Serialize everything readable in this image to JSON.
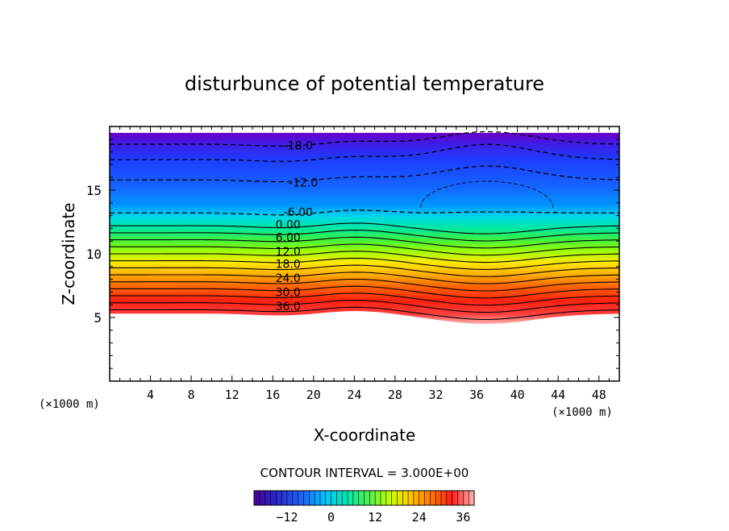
{
  "chart_data": {
    "type": "contour",
    "title": "disturbunce of potential temperature",
    "xlabel": "X-coordinate",
    "ylabel": "Z-coordinate",
    "x_unit_label": "(×1000 m)",
    "y_unit_label": "(×1000 m)",
    "xlim": [
      0,
      50
    ],
    "ylim": [
      0,
      20
    ],
    "x_ticks": [
      4,
      8,
      12,
      16,
      20,
      24,
      28,
      32,
      36,
      40,
      44,
      48
    ],
    "y_ticks": [
      5,
      10,
      15
    ],
    "contour_interval_text": "CONTOUR INTERVAL = 3.000E+00",
    "colorbar_ticks": [
      "-12",
      "0",
      "12",
      "24",
      "36"
    ],
    "colorbar_range": [
      -21,
      39
    ],
    "contour_labels": [
      {
        "text": "-18.0",
        "x": 18.5,
        "z": 18.5
      },
      {
        "text": "-12.0",
        "x": 19.0,
        "z": 15.6
      },
      {
        "text": "-6.00",
        "x": 18.5,
        "z": 13.3
      },
      {
        "text": "0.00",
        "x": 17.5,
        "z": 12.3
      },
      {
        "text": "6.00",
        "x": 17.5,
        "z": 11.3
      },
      {
        "text": "12.0",
        "x": 17.5,
        "z": 10.2
      },
      {
        "text": "18.0",
        "x": 17.5,
        "z": 9.2
      },
      {
        "text": "24.0",
        "x": 17.5,
        "z": 8.1
      },
      {
        "text": "30.0",
        "x": 17.5,
        "z": 7.0
      },
      {
        "text": "36.0",
        "x": 17.5,
        "z": 5.9
      }
    ],
    "colors": {
      "top": "#6a00c8",
      "cold": "#1450ff",
      "zero": "#00e0e0",
      "warm_mid": "#a0ff00",
      "warm_high": "#ff7000",
      "hottest": "#ff5a5a"
    }
  }
}
